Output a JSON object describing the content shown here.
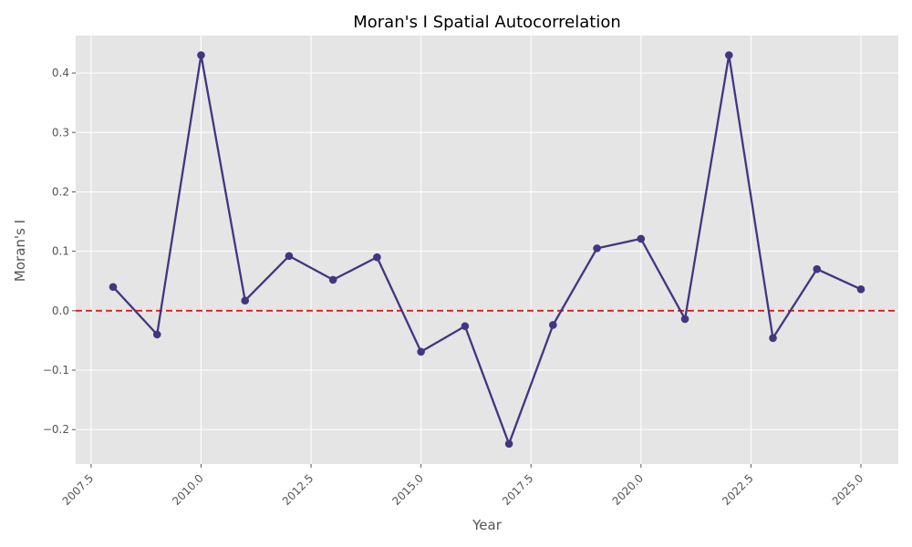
{
  "chart_data": {
    "type": "line",
    "title": "Moran's I Spatial Autocorrelation",
    "xlabel": "Year",
    "ylabel": "Moran's I",
    "xlim": [
      2007.15,
      2025.85
    ],
    "ylim": [
      -0.258,
      0.463
    ],
    "xticks": [
      2007.5,
      2010.0,
      2012.5,
      2015.0,
      2017.5,
      2020.0,
      2022.5,
      2025.0
    ],
    "xtick_labels": [
      "2007.5",
      "2010.0",
      "2012.5",
      "2015.0",
      "2017.5",
      "2020.0",
      "2022.5",
      "2025.0"
    ],
    "yticks": [
      -0.2,
      -0.1,
      0.0,
      0.1,
      0.2,
      0.3,
      0.4
    ],
    "ytick_labels": [
      "−0.2",
      "−0.1",
      "0.0",
      "0.1",
      "0.2",
      "0.3",
      "0.4"
    ],
    "grid": true,
    "series": [
      {
        "color": "#433580",
        "x": [
          2008,
          2009,
          2010,
          2011,
          2012,
          2013,
          2014,
          2015,
          2016,
          2017,
          2018,
          2019,
          2020,
          2021,
          2022,
          2023,
          2024,
          2025
        ],
        "y": [
          0.04,
          -0.04,
          0.43,
          0.017,
          0.092,
          0.052,
          0.09,
          -0.069,
          -0.026,
          -0.224,
          -0.024,
          0.105,
          0.121,
          -0.014,
          0.43,
          -0.046,
          0.07,
          0.036
        ]
      }
    ],
    "reference_line": {
      "y": 0.0,
      "color": "#e31a1c",
      "style": "dashed"
    },
    "colors": {
      "plot_background": "#e5e5e5",
      "grid": "#ffffff",
      "tick_text": "#555555"
    }
  }
}
